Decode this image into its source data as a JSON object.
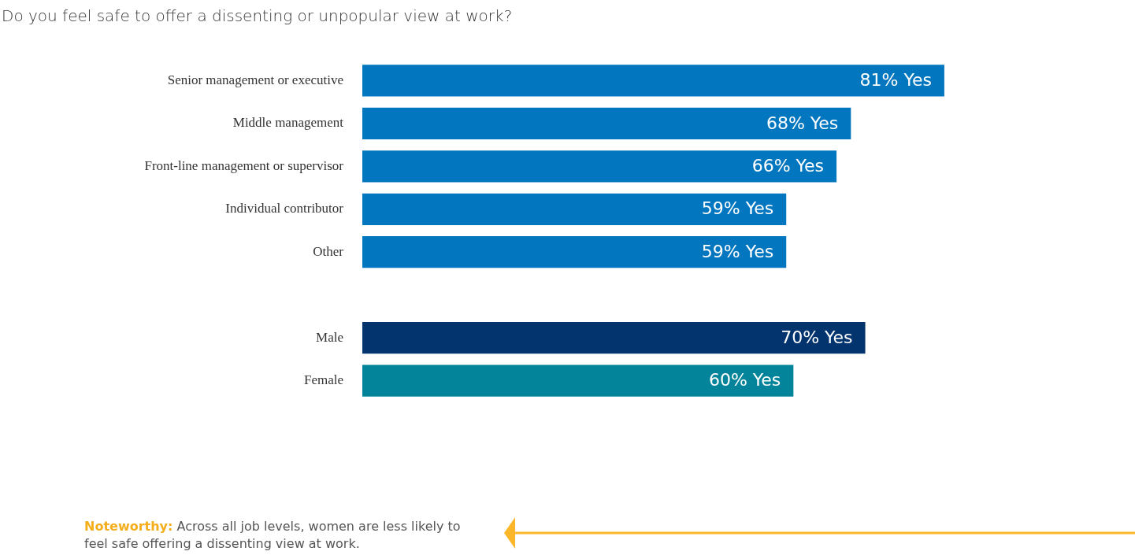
{
  "chart_data": {
    "type": "bar",
    "orientation": "horizontal",
    "title": "Do you feel safe to offer a dissenting or unpopular view at work?",
    "categories": [
      "Senior management or executive",
      "Middle management",
      "Front-line management or supervisor",
      "Individual contributor",
      "Other",
      null,
      "Male",
      "Female"
    ],
    "values": [
      81,
      68,
      66,
      59,
      59,
      null,
      70,
      60
    ],
    "colors": [
      "#0277c0",
      "#0277c0",
      "#0277c0",
      "#0277c0",
      "#0277c0",
      "#0277c0",
      "#04346e",
      "#03849a"
    ],
    "value_labels": [
      "81% Yes",
      "68% Yes",
      "66% Yes",
      "59% Yes",
      "59% Yes",
      null,
      "70% Yes",
      "60% Yes"
    ],
    "annotations": [
      "Noteworthy:",
      "Across all job levels, women are less likely to feel safe offering a dissenting view at work."
    ],
    "legend": false
  }
}
